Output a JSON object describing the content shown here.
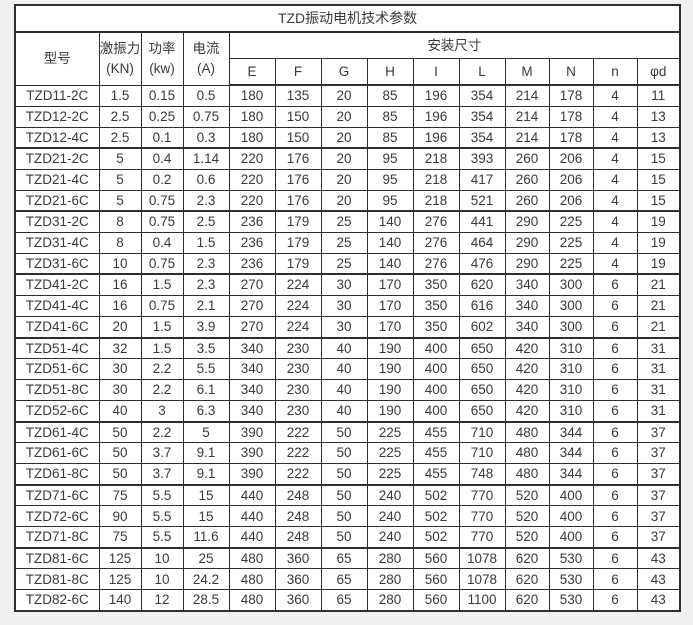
{
  "title": "TZD振动电机技术参数",
  "table": {
    "col_model": "型号",
    "col_force_line1": "激振力",
    "col_force_line2": "(KN)",
    "col_power_line1": "功率",
    "col_power_line2": "(kw)",
    "col_current_line1": "电流",
    "col_current_line2": "(A)",
    "col_mounting": "安装尺寸",
    "dim_headers": [
      "E",
      "F",
      "G",
      "H",
      "I",
      "L",
      "M",
      "N",
      "n",
      "φd"
    ],
    "group_end_row_indices": [
      2,
      5,
      8,
      11,
      15,
      18,
      21
    ],
    "rows": [
      [
        "TZD11-2C",
        "1.5",
        "0.15",
        "0.5",
        "180",
        "135",
        "20",
        "85",
        "196",
        "354",
        "214",
        "178",
        "4",
        "11"
      ],
      [
        "TZD12-2C",
        "2.5",
        "0.25",
        "0.75",
        "180",
        "150",
        "20",
        "85",
        "196",
        "354",
        "214",
        "178",
        "4",
        "13"
      ],
      [
        "TZD12-4C",
        "2.5",
        "0.1",
        "0.3",
        "180",
        "150",
        "20",
        "85",
        "196",
        "354",
        "214",
        "178",
        "4",
        "13"
      ],
      [
        "TZD21-2C",
        "5",
        "0.4",
        "1.14",
        "220",
        "176",
        "20",
        "95",
        "218",
        "393",
        "260",
        "206",
        "4",
        "15"
      ],
      [
        "TZD21-4C",
        "5",
        "0.2",
        "0.6",
        "220",
        "176",
        "20",
        "95",
        "218",
        "417",
        "260",
        "206",
        "4",
        "15"
      ],
      [
        "TZD21-6C",
        "5",
        "0.75",
        "2.3",
        "220",
        "176",
        "20",
        "95",
        "218",
        "521",
        "260",
        "206",
        "4",
        "15"
      ],
      [
        "TZD31-2C",
        "8",
        "0.75",
        "2.5",
        "236",
        "179",
        "25",
        "140",
        "276",
        "441",
        "290",
        "225",
        "4",
        "19"
      ],
      [
        "TZD31-4C",
        "8",
        "0.4",
        "1.5",
        "236",
        "179",
        "25",
        "140",
        "276",
        "464",
        "290",
        "225",
        "4",
        "19"
      ],
      [
        "TZD31-6C",
        "10",
        "0.75",
        "2.3",
        "236",
        "179",
        "25",
        "140",
        "276",
        "476",
        "290",
        "225",
        "4",
        "19"
      ],
      [
        "TZD41-2C",
        "16",
        "1.5",
        "2.3",
        "270",
        "224",
        "30",
        "170",
        "350",
        "620",
        "340",
        "300",
        "6",
        "21"
      ],
      [
        "TZD41-4C",
        "16",
        "0.75",
        "2.1",
        "270",
        "224",
        "30",
        "170",
        "350",
        "616",
        "340",
        "300",
        "6",
        "21"
      ],
      [
        "TZD41-6C",
        "20",
        "1.5",
        "3.9",
        "270",
        "224",
        "30",
        "170",
        "350",
        "602",
        "340",
        "300",
        "6",
        "21"
      ],
      [
        "TZD51-4C",
        "32",
        "1.5",
        "3.5",
        "340",
        "230",
        "40",
        "190",
        "400",
        "650",
        "420",
        "310",
        "6",
        "31"
      ],
      [
        "TZD51-6C",
        "30",
        "2.2",
        "5.5",
        "340",
        "230",
        "40",
        "190",
        "400",
        "650",
        "420",
        "310",
        "6",
        "31"
      ],
      [
        "TZD51-8C",
        "30",
        "2.2",
        "6.1",
        "340",
        "230",
        "40",
        "190",
        "400",
        "650",
        "420",
        "310",
        "6",
        "31"
      ],
      [
        "TZD52-6C",
        "40",
        "3",
        "6.3",
        "340",
        "230",
        "40",
        "190",
        "400",
        "650",
        "420",
        "310",
        "6",
        "31"
      ],
      [
        "TZD61-4C",
        "50",
        "2.2",
        "5",
        "390",
        "222",
        "50",
        "225",
        "455",
        "710",
        "480",
        "344",
        "6",
        "37"
      ],
      [
        "TZD61-6C",
        "50",
        "3.7",
        "9.1",
        "390",
        "222",
        "50",
        "225",
        "455",
        "710",
        "480",
        "344",
        "6",
        "37"
      ],
      [
        "TZD61-8C",
        "50",
        "3.7",
        "9.1",
        "390",
        "222",
        "50",
        "225",
        "455",
        "748",
        "480",
        "344",
        "6",
        "37"
      ],
      [
        "TZD71-6C",
        "75",
        "5.5",
        "15",
        "440",
        "248",
        "50",
        "240",
        "502",
        "770",
        "520",
        "400",
        "6",
        "37"
      ],
      [
        "TZD72-6C",
        "90",
        "5.5",
        "15",
        "440",
        "248",
        "50",
        "240",
        "502",
        "770",
        "520",
        "400",
        "6",
        "37"
      ],
      [
        "TZD71-8C",
        "75",
        "5.5",
        "11.6",
        "440",
        "248",
        "50",
        "240",
        "502",
        "770",
        "520",
        "400",
        "6",
        "37"
      ],
      [
        "TZD81-6C",
        "125",
        "10",
        "25",
        "480",
        "360",
        "65",
        "280",
        "560",
        "1078",
        "620",
        "530",
        "6",
        "43"
      ],
      [
        "TZD81-8C",
        "125",
        "10",
        "24.2",
        "480",
        "360",
        "65",
        "280",
        "560",
        "1078",
        "620",
        "530",
        "6",
        "43"
      ],
      [
        "TZD82-6C",
        "140",
        "12",
        "28.5",
        "480",
        "360",
        "65",
        "280",
        "560",
        "1100",
        "620",
        "530",
        "6",
        "43"
      ]
    ]
  }
}
